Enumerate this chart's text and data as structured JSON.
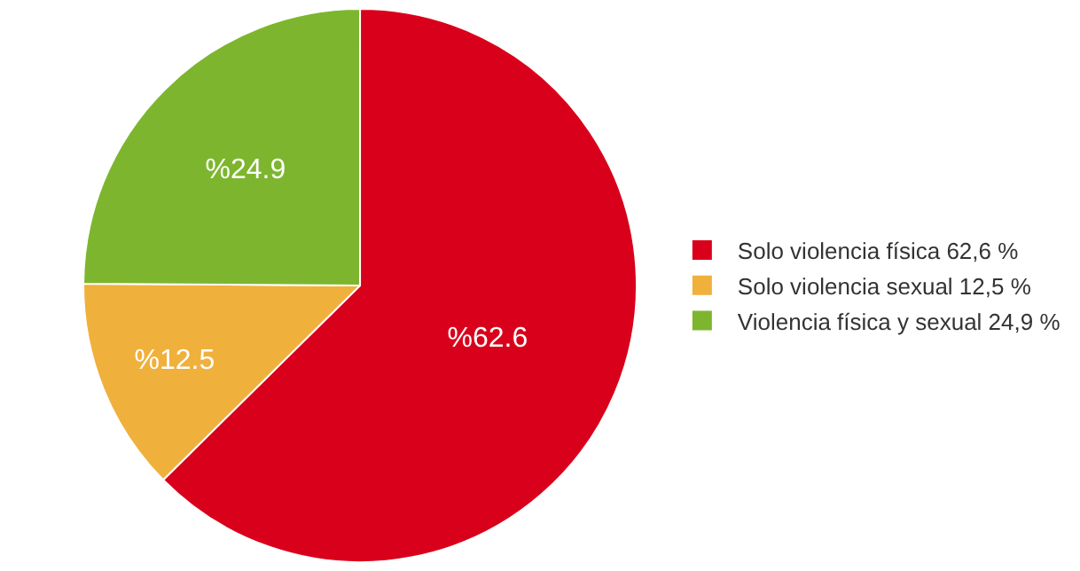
{
  "chart_data": {
    "type": "pie",
    "categories": [
      "Solo violencia física 62,6 %",
      "Solo violencia sexual 12,5 %",
      "Violencia física y sexual 24,9 %"
    ],
    "values": [
      62.6,
      12.5,
      24.9
    ],
    "value_labels": [
      "%62.6",
      "%12.5",
      "%24.9"
    ],
    "colors": [
      "#d9001b",
      "#f0b03c",
      "#7db62e"
    ],
    "legend": "right"
  }
}
